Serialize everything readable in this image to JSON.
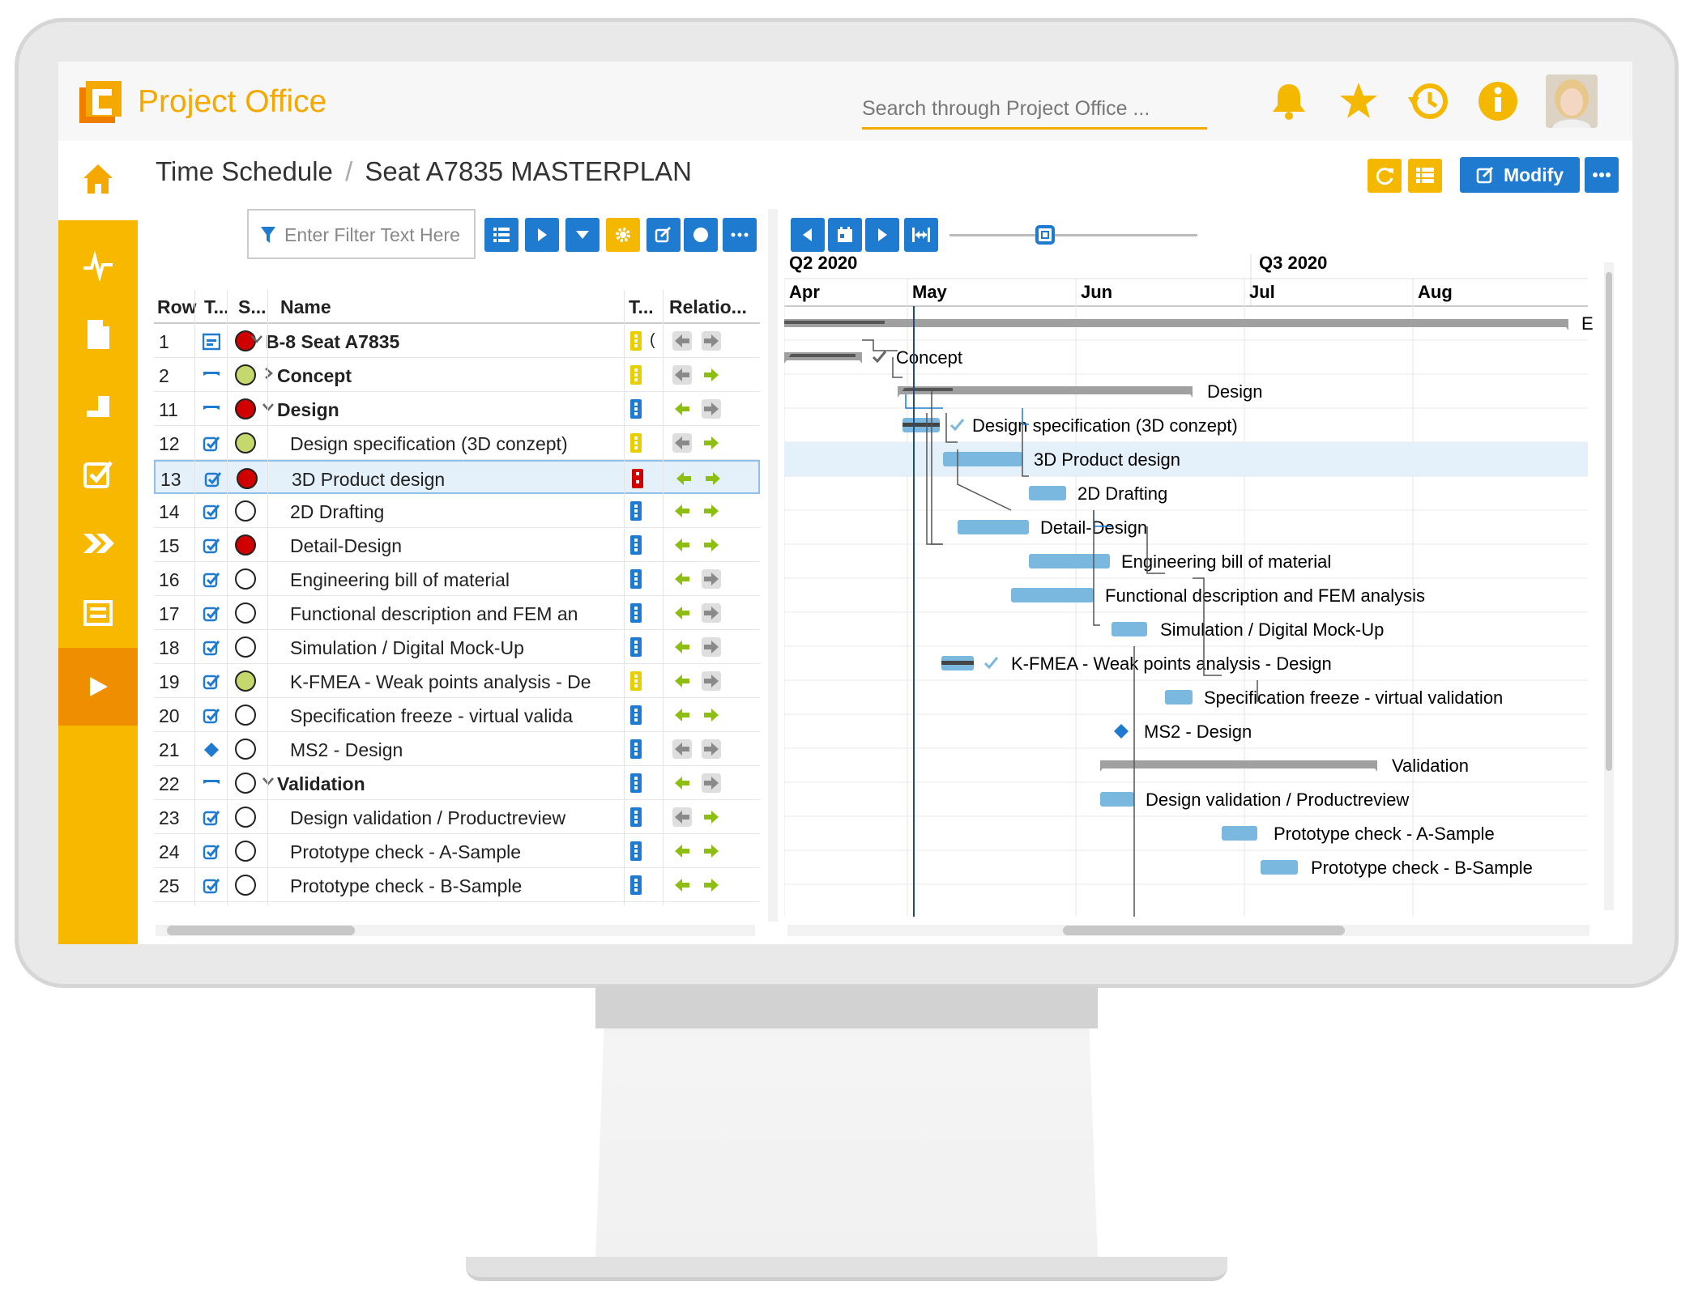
{
  "app": {
    "name": "Project Office",
    "search_placeholder": "Search through Project Office ..."
  },
  "page": {
    "section": "Time Schedule",
    "separator": "/",
    "project": "Seat A7835 MASTERPLAN",
    "modify_label": "Modify",
    "filter_placeholder": "Enter Filter Text Here"
  },
  "colors": {
    "brand": "#f5a800",
    "accent_blue": "#1e7bd0",
    "sidebar_yellow": "#f8b800",
    "sidebar_active": "#ef8f00",
    "bar_blue": "#7ab8e0",
    "summary_gray": "#a0a0a0",
    "status_red": "#d00000",
    "status_green": "#c5d86d",
    "arrow_green": "#8cbf12"
  },
  "table": {
    "columns": [
      "Row",
      "T...",
      "S...",
      "Name",
      "T...",
      "Relatio..."
    ],
    "rows": [
      {
        "row": "1",
        "type": "project",
        "status": "red",
        "name": "B-8 Seat A7835",
        "bold": true,
        "indent": 0,
        "expander": "down",
        "traffic": "yellow",
        "traffic_extra": "(",
        "left": "gray",
        "right": "gray"
      },
      {
        "row": "2",
        "type": "summary",
        "status": "green",
        "name": "Concept",
        "bold": true,
        "indent": 1,
        "expander": "right",
        "traffic": "yellow",
        "left": "gray",
        "right": "green"
      },
      {
        "row": "11",
        "type": "summary",
        "status": "red",
        "name": "Design",
        "bold": true,
        "indent": 1,
        "expander": "down",
        "traffic": "blue",
        "left": "green",
        "right": "gray"
      },
      {
        "row": "12",
        "type": "task",
        "status": "green",
        "name": "Design specification (3D conzept)",
        "bold": false,
        "indent": 2,
        "traffic": "yellow",
        "left": "gray",
        "right": "green"
      },
      {
        "row": "13",
        "type": "task",
        "status": "red",
        "name": "3D Product design",
        "bold": false,
        "indent": 2,
        "traffic": "red",
        "left": "green",
        "right": "green",
        "selected": true
      },
      {
        "row": "14",
        "type": "task",
        "status": "empty",
        "name": "2D Drafting",
        "bold": false,
        "indent": 2,
        "traffic": "blue",
        "left": "green",
        "right": "green"
      },
      {
        "row": "15",
        "type": "task",
        "status": "red",
        "name": "Detail-Design",
        "bold": false,
        "indent": 2,
        "traffic": "blue",
        "left": "green",
        "right": "green"
      },
      {
        "row": "16",
        "type": "task",
        "status": "empty",
        "name": "Engineering bill of material",
        "bold": false,
        "indent": 2,
        "traffic": "blue",
        "left": "green",
        "right": "gray"
      },
      {
        "row": "17",
        "type": "task",
        "status": "empty",
        "name": "Functional description and FEM an",
        "bold": false,
        "indent": 2,
        "traffic": "blue",
        "left": "green",
        "right": "gray"
      },
      {
        "row": "18",
        "type": "task",
        "status": "empty",
        "name": "Simulation / Digital Mock-Up",
        "bold": false,
        "indent": 2,
        "traffic": "blue",
        "left": "green",
        "right": "gray"
      },
      {
        "row": "19",
        "type": "task",
        "status": "green",
        "name": "K-FMEA - Weak points analysis - De",
        "bold": false,
        "indent": 2,
        "traffic": "yellow",
        "left": "green",
        "right": "gray"
      },
      {
        "row": "20",
        "type": "task",
        "status": "empty",
        "name": "Specification freeze - virtual valida",
        "bold": false,
        "indent": 2,
        "traffic": "blue",
        "left": "green",
        "right": "green"
      },
      {
        "row": "21",
        "type": "milestone",
        "status": "empty",
        "name": "MS2 - Design",
        "bold": false,
        "indent": 2,
        "traffic": "blue",
        "left": "gray",
        "right": "gray"
      },
      {
        "row": "22",
        "type": "summary",
        "status": "empty",
        "name": "Validation",
        "bold": true,
        "indent": 1,
        "expander": "down",
        "traffic": "blue",
        "left": "green",
        "right": "gray"
      },
      {
        "row": "23",
        "type": "task",
        "status": "empty",
        "name": "Design validation / Productreview",
        "bold": false,
        "indent": 2,
        "traffic": "blue",
        "left": "gray",
        "right": "green"
      },
      {
        "row": "24",
        "type": "task",
        "status": "empty",
        "name": "Prototype check - A-Sample",
        "bold": false,
        "indent": 2,
        "traffic": "blue",
        "left": "green",
        "right": "green"
      },
      {
        "row": "25",
        "type": "task",
        "status": "empty",
        "name": "Prototype check - B-Sample",
        "bold": false,
        "indent": 2,
        "traffic": "blue",
        "left": "green",
        "right": "green"
      }
    ]
  },
  "gantt": {
    "quarters": [
      "Q2 2020",
      "Q3 2020"
    ],
    "months": [
      "Apr",
      "May",
      "Jun",
      "Jul",
      "Aug"
    ],
    "project_end_label": "E",
    "labels": [
      "",
      "Concept",
      "Design",
      "Design specification (3D conzept)",
      "3D Product design",
      "2D Drafting",
      "Detail-Design",
      "Engineering bill of material",
      "Functional description and FEM analysis",
      "Simulation / Digital Mock-Up",
      "K-FMEA - Weak points analysis - Design",
      "Specification freeze - virtual validation",
      "MS2 - Design",
      "Validation",
      "Design validation / Productreview",
      "Prototype check - A-Sample",
      "Prototype check - B-Sample"
    ]
  }
}
